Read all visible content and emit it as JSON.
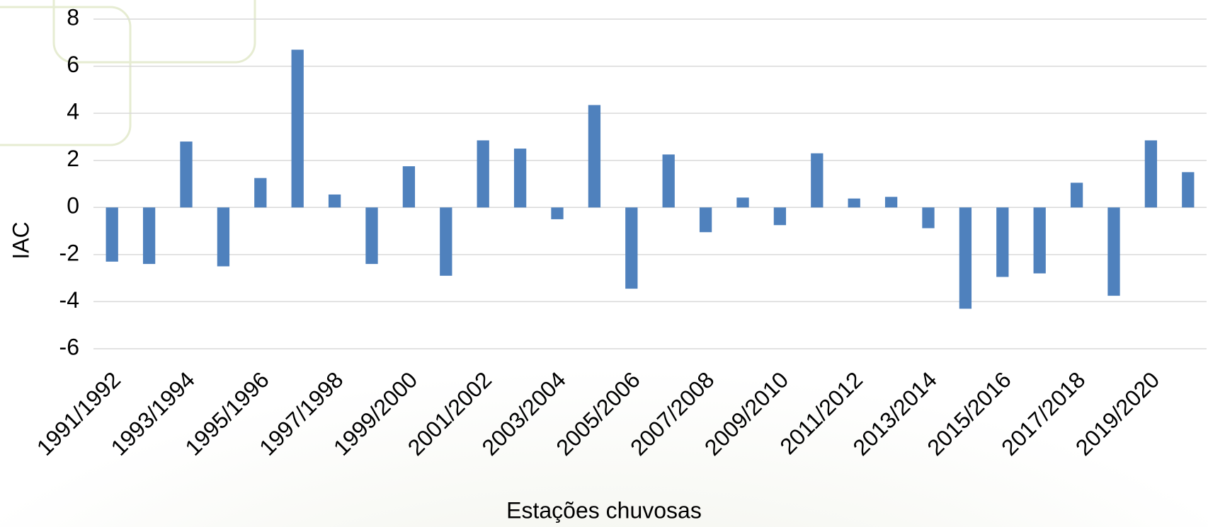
{
  "chart_data": {
    "type": "bar",
    "x_label": "Estações chuvosas",
    "y_label": "IAC",
    "categories": [
      "1991/1992",
      null,
      "1993/1994",
      null,
      "1995/1996",
      null,
      "1997/1998",
      null,
      "1999/2000",
      null,
      "2001/2002",
      null,
      "2003/2004",
      null,
      "2005/2006",
      null,
      "2007/2008",
      null,
      "2009/2010",
      null,
      "2011/2012",
      null,
      "2013/2014",
      null,
      "2015/2016",
      null,
      "2017/2018",
      null,
      "2019/2020",
      null
    ],
    "values": [
      -2.3,
      -2.4,
      2.8,
      -2.5,
      1.25,
      6.7,
      0.55,
      -2.4,
      1.75,
      -2.9,
      2.85,
      2.5,
      -0.5,
      4.35,
      -3.45,
      2.25,
      -1.05,
      0.42,
      -0.75,
      2.3,
      0.38,
      0.45,
      -0.88,
      -4.3,
      -2.95,
      -2.8,
      1.05,
      -3.75,
      2.85,
      1.5
    ],
    "color": "#4f81bd",
    "ylim": [
      -6,
      8
    ],
    "yticks": [
      -6,
      -4,
      -2,
      0,
      2,
      4,
      6,
      8
    ],
    "grid": true
  }
}
